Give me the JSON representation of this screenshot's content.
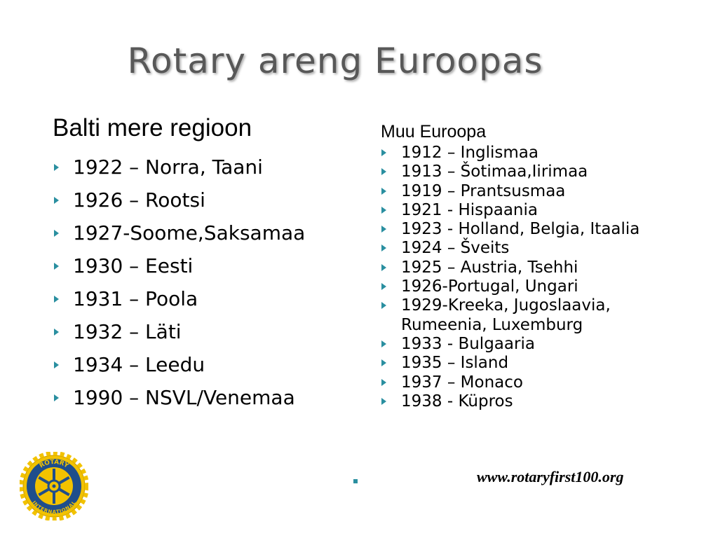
{
  "title": "Rotary areng Euroopas",
  "left": {
    "heading": "Balti mere regioon",
    "items": [
      "1922 – Norra, Taani",
      "1926 – Rootsi",
      "1927-Soome,Saksamaa",
      "1930 – Eesti",
      "1931 – Poola",
      "1932 – Läti",
      "1934 – Leedu",
      "1990 – NSVL/Venemaa"
    ]
  },
  "right": {
    "heading": "Muu Euroopa",
    "items": [
      "1912 – Inglismaa",
      "1913 – Šotimaa,Iirimaa",
      "1919 – Prantsusmaa",
      "1921 - Hispaania",
      "1923 - Holland, Belgia, Itaalia",
      "1924 – Šveits",
      "1925 – Austria, Tsehhi",
      "1926-Portugal, Ungari",
      "1929-Kreeka, Jugoslaavia, Rumeenia, Luxemburg",
      "1933 - Bulgaaria",
      "1935 – Island",
      "1937 – Monaco",
      "1938 - Küpros"
    ]
  },
  "logo": {
    "top": "ROTARY",
    "bottom": "INTERNATIONAL"
  },
  "url": "www.rotaryfirst100.org"
}
